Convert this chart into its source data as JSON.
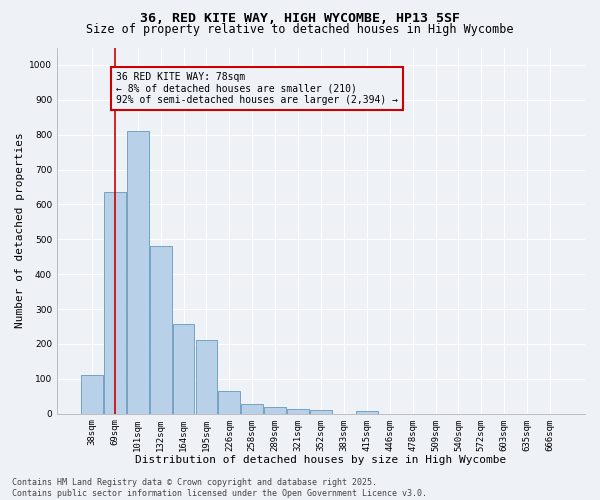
{
  "title": "36, RED KITE WAY, HIGH WYCOMBE, HP13 5SF",
  "subtitle": "Size of property relative to detached houses in High Wycombe",
  "xlabel": "Distribution of detached houses by size in High Wycombe",
  "ylabel": "Number of detached properties",
  "categories": [
    "38sqm",
    "69sqm",
    "101sqm",
    "132sqm",
    "164sqm",
    "195sqm",
    "226sqm",
    "258sqm",
    "289sqm",
    "321sqm",
    "352sqm",
    "383sqm",
    "415sqm",
    "446sqm",
    "478sqm",
    "509sqm",
    "540sqm",
    "572sqm",
    "603sqm",
    "635sqm",
    "666sqm"
  ],
  "values": [
    110,
    635,
    810,
    480,
    258,
    212,
    65,
    28,
    20,
    13,
    10,
    0,
    8,
    0,
    0,
    0,
    0,
    0,
    0,
    0,
    0
  ],
  "bar_color": "#b8d0e8",
  "bar_edge_color": "#6699bb",
  "vline_color": "#cc0000",
  "vline_x": 1.5,
  "annotation_text": "36 RED KITE WAY: 78sqm\n← 8% of detached houses are smaller (210)\n92% of semi-detached houses are larger (2,394) →",
  "annotation_box_color": "#cc0000",
  "ylim": [
    0,
    1050
  ],
  "yticks": [
    0,
    100,
    200,
    300,
    400,
    500,
    600,
    700,
    800,
    900,
    1000
  ],
  "background_color": "#eef2f7",
  "grid_color": "#ffffff",
  "footer_text": "Contains HM Land Registry data © Crown copyright and database right 2025.\nContains public sector information licensed under the Open Government Licence v3.0.",
  "title_fontsize": 9.5,
  "subtitle_fontsize": 8.5,
  "xlabel_fontsize": 8,
  "ylabel_fontsize": 8,
  "tick_fontsize": 6.5,
  "annotation_fontsize": 7,
  "footer_fontsize": 6
}
